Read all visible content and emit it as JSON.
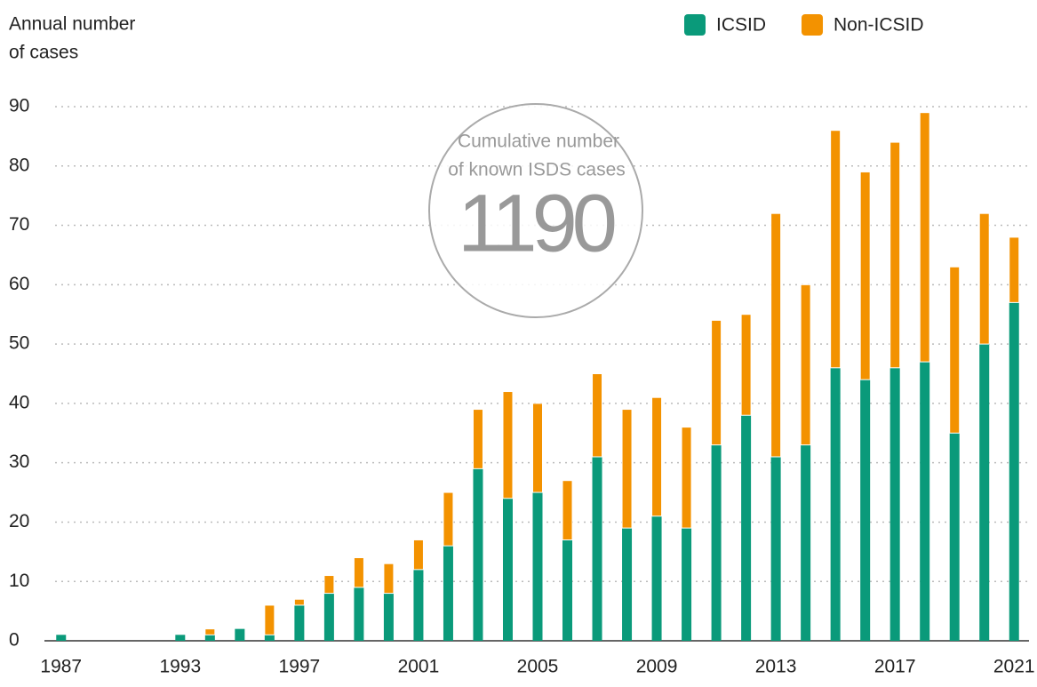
{
  "chart_data": {
    "type": "stacked_bar",
    "y_label": [
      "Annual number",
      "of cases"
    ],
    "annotation": {
      "lines": [
        "Cumulative number",
        "of known ISDS cases"
      ],
      "number": "1190"
    },
    "categories": [
      "1987",
      null,
      null,
      null,
      "1993",
      null,
      null,
      null,
      "1997",
      null,
      null,
      null,
      "2001",
      null,
      null,
      null,
      "2005",
      null,
      null,
      null,
      "2009",
      null,
      null,
      null,
      "2013",
      null,
      null,
      null,
      "2017",
      null,
      null,
      null,
      "2021"
    ],
    "series": [
      {
        "name": "ICSID",
        "color": "#0a9a7a",
        "values": [
          1,
          0,
          0,
          0,
          1,
          1,
          2,
          1,
          6,
          8,
          9,
          8,
          12,
          16,
          29,
          24,
          25,
          17,
          31,
          19,
          21,
          19,
          33,
          38,
          31,
          33,
          46,
          44,
          46,
          47,
          35,
          50,
          57
        ]
      },
      {
        "name": "Non-ICSID",
        "color": "#f39200",
        "values": [
          0,
          0,
          0,
          0,
          0,
          1,
          0,
          5,
          1,
          3,
          5,
          5,
          5,
          9,
          10,
          18,
          15,
          10,
          14,
          20,
          20,
          17,
          21,
          17,
          41,
          27,
          40,
          35,
          38,
          42,
          28,
          22,
          11
        ]
      }
    ],
    "ylim": [
      0,
      90
    ],
    "yticks": [
      0,
      10,
      20,
      30,
      40,
      50,
      60,
      70,
      80,
      90
    ],
    "grid": true,
    "legend": "top-right"
  }
}
